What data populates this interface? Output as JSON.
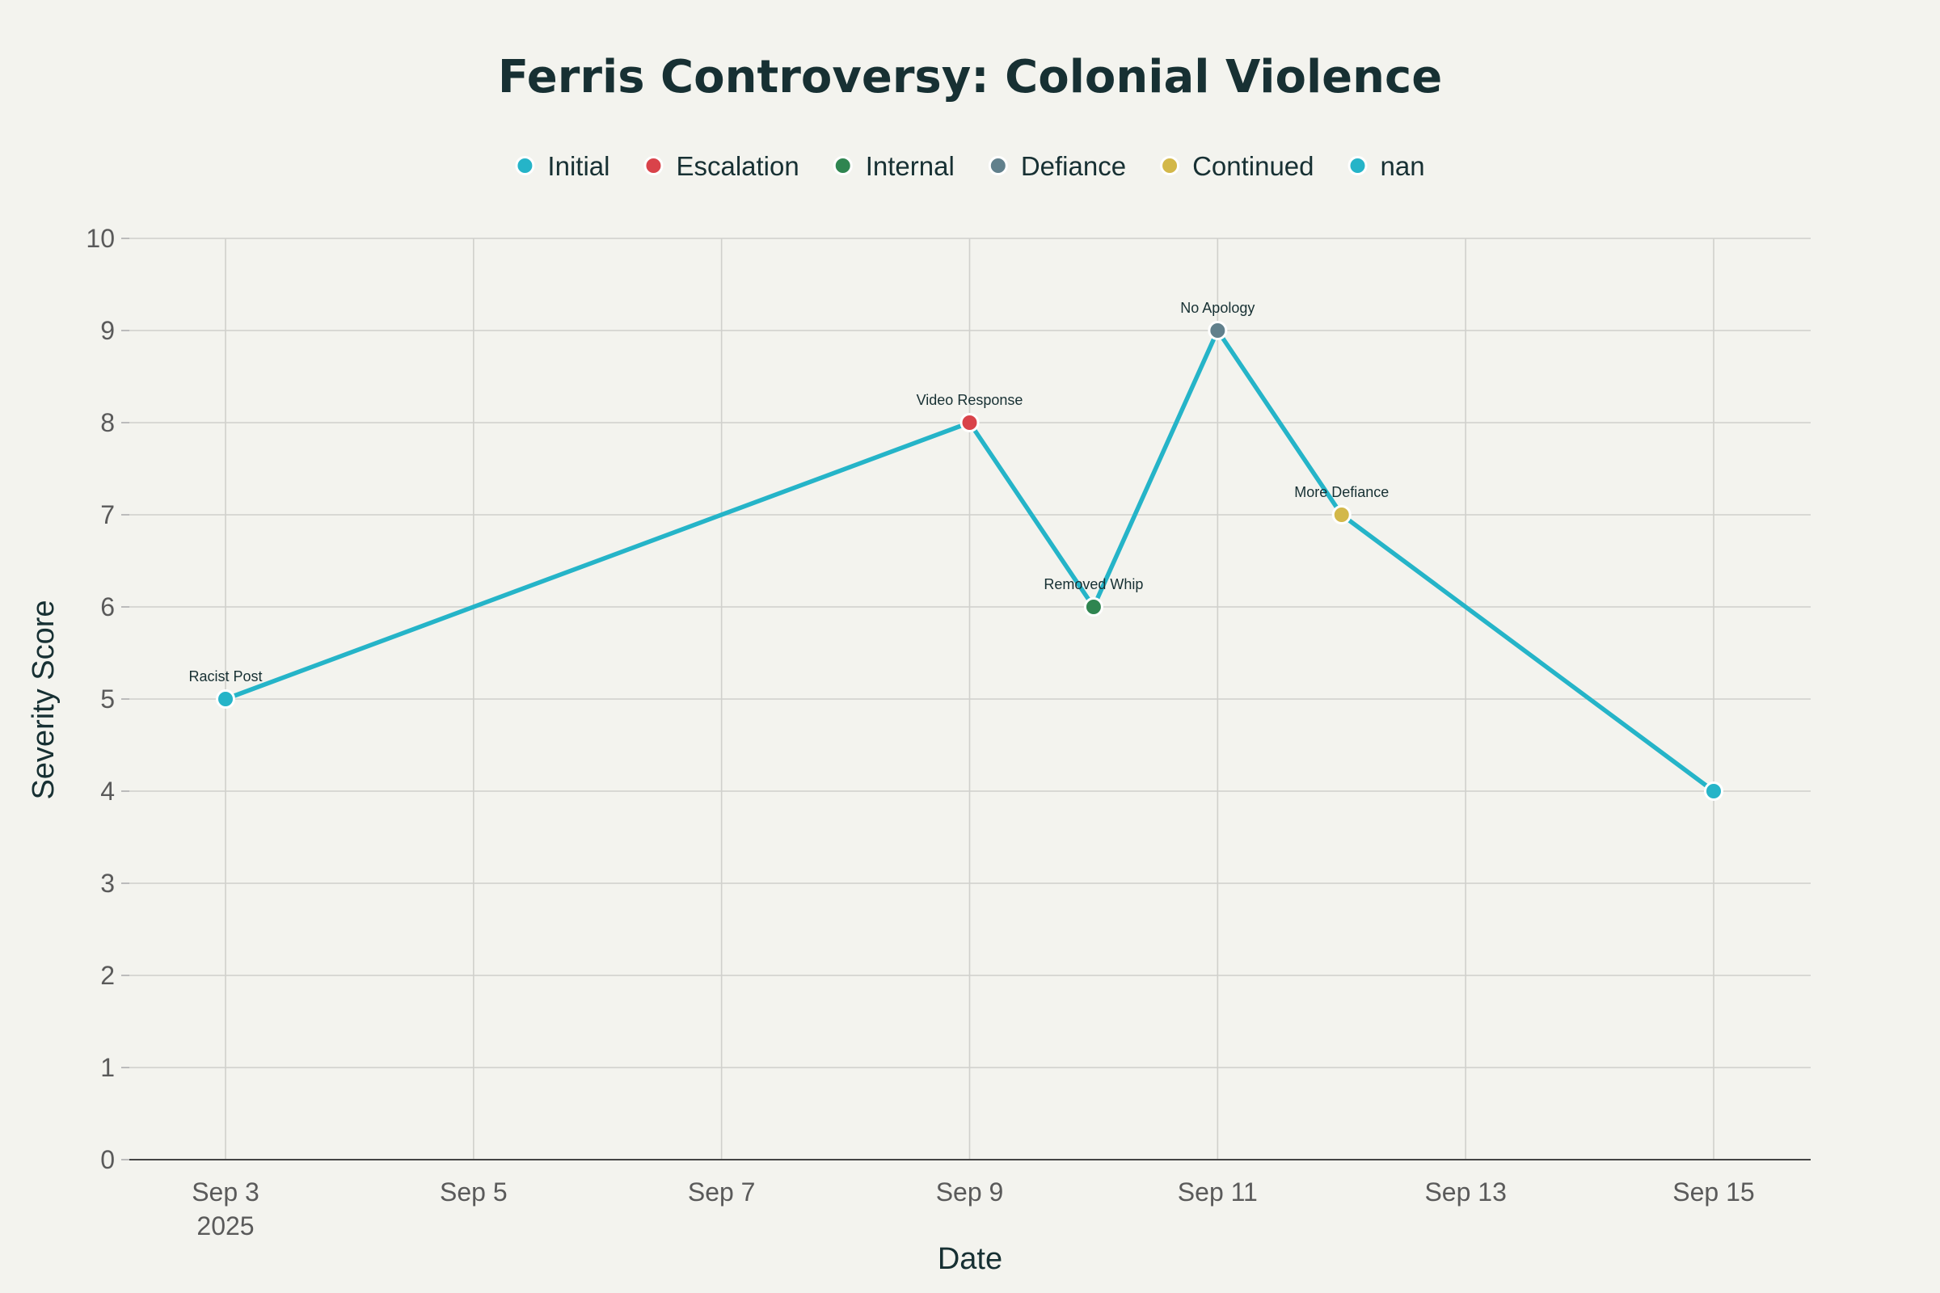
{
  "chart_data": {
    "type": "line",
    "title": "Ferris Controversy: Colonial Violence",
    "xlabel": "Date",
    "ylabel": "Severity Score",
    "ylim": [
      0,
      10
    ],
    "yticks": [
      0,
      1,
      2,
      3,
      4,
      5,
      6,
      7,
      8,
      9,
      10
    ],
    "xlim": [
      "2025-09-02",
      "2025-09-15"
    ],
    "xticks": [
      {
        "date": "2025-09-03",
        "label": "Sep 3",
        "sublabel": "2025"
      },
      {
        "date": "2025-09-05",
        "label": "Sep 5",
        "sublabel": ""
      },
      {
        "date": "2025-09-07",
        "label": "Sep 7",
        "sublabel": ""
      },
      {
        "date": "2025-09-09",
        "label": "Sep 9",
        "sublabel": ""
      },
      {
        "date": "2025-09-11",
        "label": "Sep 11",
        "sublabel": ""
      },
      {
        "date": "2025-09-13",
        "label": "Sep 13",
        "sublabel": ""
      },
      {
        "date": "2025-09-15",
        "label": "Sep 15",
        "sublabel": ""
      }
    ],
    "grid": true,
    "legend_position": "top",
    "line_color": "#25b4c8",
    "legend": [
      {
        "name": "Initial",
        "color": "#25b4c8"
      },
      {
        "name": "Escalation",
        "color": "#d9434a"
      },
      {
        "name": "Internal",
        "color": "#2f8550"
      },
      {
        "name": "Defiance",
        "color": "#61808c"
      },
      {
        "name": "Continued",
        "color": "#d3b84a"
      },
      {
        "name": "nan",
        "color": "#25b4c8"
      }
    ],
    "points": [
      {
        "date": "2025-09-03",
        "y": 5,
        "label": "Racist Post",
        "category": "Initial",
        "color": "#25b4c8"
      },
      {
        "date": "2025-09-09",
        "y": 8,
        "label": "Video Response",
        "category": "Escalation",
        "color": "#d9434a"
      },
      {
        "date": "2025-09-10",
        "y": 6,
        "label": "Removed Whip",
        "category": "Internal",
        "color": "#2f8550"
      },
      {
        "date": "2025-09-11",
        "y": 9,
        "label": "No Apology",
        "category": "Defiance",
        "color": "#61808c"
      },
      {
        "date": "2025-09-12",
        "y": 7,
        "label": "More Defiance",
        "category": "Continued",
        "color": "#d3b84a"
      },
      {
        "date": "2025-09-15",
        "y": 4,
        "label": "",
        "category": "nan",
        "color": "#25b4c8"
      }
    ]
  }
}
